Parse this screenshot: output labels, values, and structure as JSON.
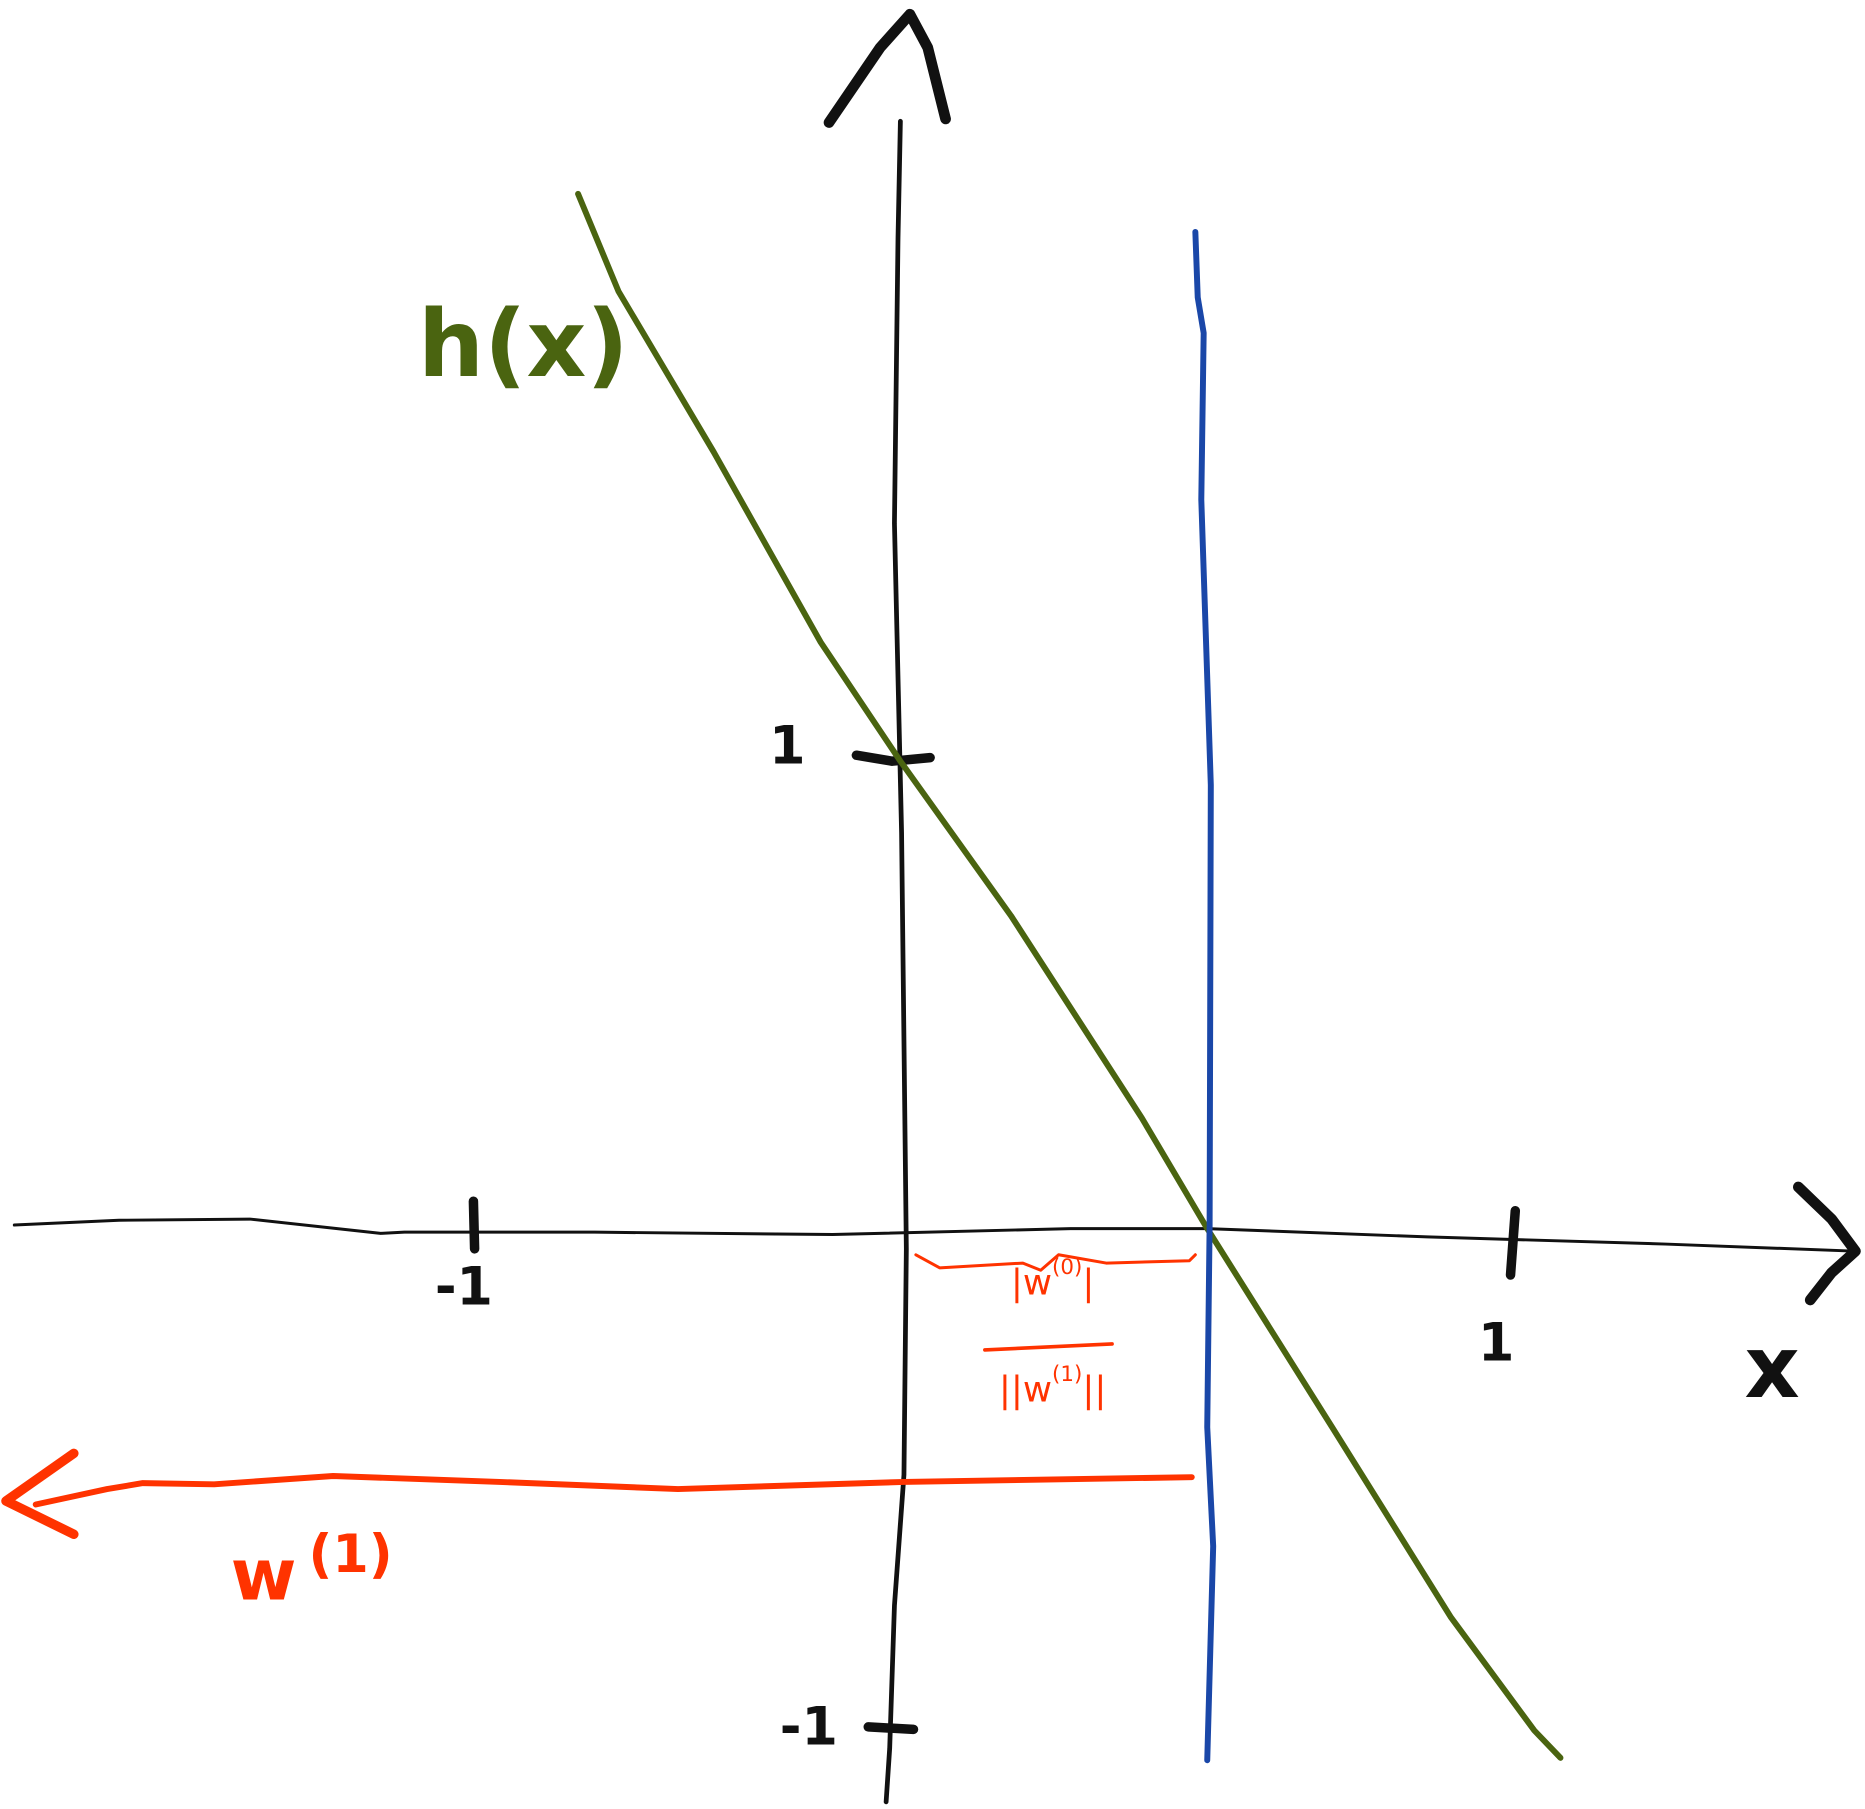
{
  "curve_label": "h(x)",
  "axes": {
    "x_label": "x",
    "x_ticks": [
      "-1",
      "1"
    ],
    "y_ticks": [
      "1",
      "-1"
    ]
  },
  "distance_label": {
    "numerator": {
      "left": "|w",
      "sup": "(0)",
      "right": "|"
    },
    "denominator": {
      "left": "||w",
      "sup": "(1)",
      "right": "||"
    }
  },
  "vector_label": {
    "base": "w",
    "sup": "(1)"
  }
}
